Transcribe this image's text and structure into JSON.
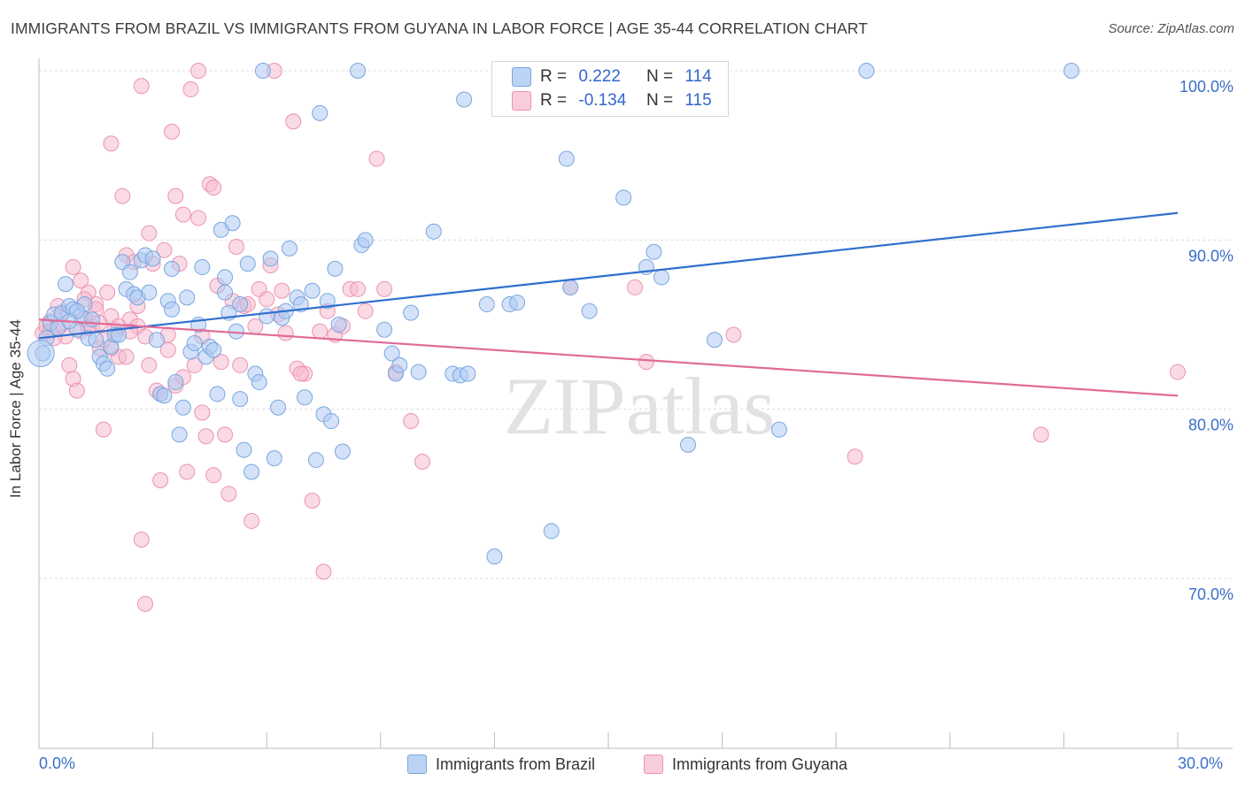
{
  "title": "IMMIGRANTS FROM BRAZIL VS IMMIGRANTS FROM GUYANA IN LABOR FORCE | AGE 35-44 CORRELATION CHART",
  "source": "Source: ZipAtlas.com",
  "watermark": "ZIPatlas",
  "legend_top": {
    "brazil": {
      "r_label": "R =",
      "r_value": "0.222",
      "n_label": "N =",
      "n_value": "114"
    },
    "guyana": {
      "r_label": "R =",
      "r_value": "-0.134",
      "n_label": "N =",
      "n_value": "115"
    }
  },
  "legend_bottom": {
    "brazil": "Immigrants from Brazil",
    "guyana": "Immigrants from Guyana"
  },
  "x_axis": {
    "min_label": "0.0%",
    "max_label": "30.0%"
  },
  "colors": {
    "brazil_fill": "#aecbf2",
    "brazil_stroke": "#7aa6e0",
    "brazil_line": "#2f6fcd",
    "guyana_fill": "#f6bcd0",
    "guyana_stroke": "#ec93b2",
    "guyana_line": "#e06b98",
    "grid": "#dcdcdc",
    "tick_label": "#3a6fc7"
  },
  "chart_data": {
    "type": "scatter",
    "title": "IMMIGRANTS FROM BRAZIL VS IMMIGRANTS FROM GUYANA IN LABOR FORCE | AGE 35-44 CORRELATION CHART",
    "xlabel": "",
    "ylabel": "In Labor Force | Age 35-44",
    "xlim": [
      0,
      30
    ],
    "ylim": [
      60,
      102
    ],
    "y_ticks": [
      {
        "value": 70,
        "label": "70.0%"
      },
      {
        "value": 80,
        "label": "80.0%"
      },
      {
        "value": 90,
        "label": "90.0%"
      },
      {
        "value": 100,
        "label": "100.0%"
      }
    ],
    "grid": "horizontal dashed",
    "legend": "top-center",
    "series": [
      {
        "name": "Immigrants from Brazil",
        "color": "#aecbf2",
        "trend": {
          "x": [
            0,
            30
          ],
          "y": [
            84.2,
            91.6
          ]
        },
        "points": [
          [
            0.1,
            83.3
          ],
          [
            0.2,
            84.2
          ],
          [
            0.3,
            85.1
          ],
          [
            0.4,
            85.6
          ],
          [
            0.5,
            84.8
          ],
          [
            0.6,
            85.7
          ],
          [
            0.7,
            87.4
          ],
          [
            0.8,
            86.1
          ],
          [
            0.9,
            85.9
          ],
          [
            1.0,
            84.7
          ],
          [
            1.1,
            85.5
          ],
          [
            1.2,
            86.2
          ],
          [
            1.3,
            84.2
          ],
          [
            1.4,
            85.3
          ],
          [
            1.5,
            84.1
          ],
          [
            1.6,
            83.1
          ],
          [
            1.7,
            82.7
          ],
          [
            1.8,
            82.4
          ],
          [
            1.9,
            83.7
          ],
          [
            2.0,
            84.4
          ],
          [
            2.2,
            88.7
          ],
          [
            2.3,
            87.1
          ],
          [
            2.4,
            88.1
          ],
          [
            2.5,
            86.8
          ],
          [
            2.6,
            86.6
          ],
          [
            2.7,
            88.8
          ],
          [
            2.8,
            89.1
          ],
          [
            2.9,
            86.9
          ],
          [
            3.0,
            88.9
          ],
          [
            3.1,
            84.1
          ],
          [
            3.2,
            80.9
          ],
          [
            3.3,
            80.8
          ],
          [
            3.4,
            86.4
          ],
          [
            3.5,
            85.9
          ],
          [
            3.6,
            81.6
          ],
          [
            3.7,
            78.5
          ],
          [
            3.8,
            80.1
          ],
          [
            3.9,
            86.6
          ],
          [
            4.0,
            83.4
          ],
          [
            4.1,
            83.9
          ],
          [
            4.2,
            85.0
          ],
          [
            4.3,
            88.4
          ],
          [
            4.4,
            83.1
          ],
          [
            4.5,
            83.7
          ],
          [
            4.6,
            83.5
          ],
          [
            4.7,
            80.9
          ],
          [
            4.8,
            90.6
          ],
          [
            4.9,
            86.9
          ],
          [
            5.0,
            85.7
          ],
          [
            5.1,
            91.0
          ],
          [
            5.2,
            84.6
          ],
          [
            5.3,
            80.6
          ],
          [
            5.4,
            77.6
          ],
          [
            5.5,
            88.6
          ],
          [
            5.6,
            76.3
          ],
          [
            5.7,
            82.1
          ],
          [
            5.8,
            81.6
          ],
          [
            5.9,
            100.0
          ],
          [
            6.1,
            88.9
          ],
          [
            6.2,
            77.1
          ],
          [
            6.3,
            80.1
          ],
          [
            6.4,
            85.4
          ],
          [
            6.5,
            85.8
          ],
          [
            6.6,
            89.5
          ],
          [
            6.8,
            86.6
          ],
          [
            6.9,
            86.2
          ],
          [
            7.0,
            80.7
          ],
          [
            7.2,
            87.0
          ],
          [
            7.3,
            77.0
          ],
          [
            7.4,
            97.5
          ],
          [
            7.5,
            79.7
          ],
          [
            7.6,
            86.4
          ],
          [
            7.7,
            79.3
          ],
          [
            7.8,
            88.3
          ],
          [
            8.0,
            77.5
          ],
          [
            8.4,
            100.0
          ],
          [
            8.5,
            89.7
          ],
          [
            8.6,
            90.0
          ],
          [
            9.3,
            83.3
          ],
          [
            9.4,
            82.1
          ],
          [
            9.5,
            82.6
          ],
          [
            9.8,
            85.7
          ],
          [
            10.0,
            82.2
          ],
          [
            10.4,
            90.5
          ],
          [
            10.9,
            82.1
          ],
          [
            11.1,
            82.0
          ],
          [
            11.2,
            98.3
          ],
          [
            11.3,
            82.1
          ],
          [
            11.8,
            86.2
          ],
          [
            12.4,
            86.2
          ],
          [
            12.6,
            86.3
          ],
          [
            12.0,
            71.3
          ],
          [
            13.5,
            72.8
          ],
          [
            13.9,
            94.8
          ],
          [
            14.0,
            87.2
          ],
          [
            14.5,
            85.8
          ],
          [
            15.4,
            92.5
          ],
          [
            16.0,
            88.4
          ],
          [
            16.2,
            89.3
          ],
          [
            16.4,
            87.8
          ],
          [
            17.1,
            77.9
          ],
          [
            17.8,
            84.1
          ],
          [
            19.5,
            78.8
          ],
          [
            21.8,
            100.0
          ],
          [
            27.2,
            100.0
          ],
          [
            4.9,
            87.8
          ],
          [
            2.1,
            84.4
          ],
          [
            3.5,
            88.3
          ],
          [
            1.0,
            85.8
          ],
          [
            6.0,
            85.5
          ],
          [
            5.3,
            86.2
          ],
          [
            7.9,
            85.0
          ],
          [
            9.1,
            84.7
          ],
          [
            0.8,
            85.2
          ]
        ]
      },
      {
        "name": "Immigrants from Guyana",
        "color": "#f6bcd0",
        "trend": {
          "x": [
            0,
            30
          ],
          "y": [
            85.3,
            80.8
          ]
        },
        "points": [
          [
            0.1,
            84.5
          ],
          [
            0.2,
            84.9
          ],
          [
            0.3,
            85.2
          ],
          [
            0.4,
            84.7
          ],
          [
            0.5,
            86.1
          ],
          [
            0.6,
            85.0
          ],
          [
            0.7,
            84.3
          ],
          [
            0.8,
            82.6
          ],
          [
            0.9,
            81.8
          ],
          [
            1.0,
            81.1
          ],
          [
            1.1,
            84.6
          ],
          [
            1.2,
            85.3
          ],
          [
            1.3,
            86.9
          ],
          [
            1.4,
            84.9
          ],
          [
            1.5,
            86.2
          ],
          [
            1.6,
            83.6
          ],
          [
            1.7,
            78.8
          ],
          [
            1.8,
            86.9
          ],
          [
            1.9,
            85.5
          ],
          [
            2.0,
            84.7
          ],
          [
            2.1,
            83.1
          ],
          [
            2.2,
            92.6
          ],
          [
            2.3,
            89.1
          ],
          [
            2.4,
            85.3
          ],
          [
            2.5,
            88.7
          ],
          [
            2.6,
            84.9
          ],
          [
            2.7,
            72.3
          ],
          [
            2.8,
            68.5
          ],
          [
            2.9,
            90.4
          ],
          [
            3.0,
            88.6
          ],
          [
            3.1,
            81.1
          ],
          [
            3.2,
            75.8
          ],
          [
            3.3,
            89.4
          ],
          [
            3.4,
            84.4
          ],
          [
            3.5,
            96.4
          ],
          [
            3.6,
            92.6
          ],
          [
            3.7,
            88.6
          ],
          [
            3.8,
            91.5
          ],
          [
            3.9,
            76.3
          ],
          [
            4.0,
            98.9
          ],
          [
            4.1,
            82.6
          ],
          [
            4.2,
            91.3
          ],
          [
            4.3,
            79.8
          ],
          [
            4.4,
            78.4
          ],
          [
            4.5,
            93.3
          ],
          [
            4.6,
            93.1
          ],
          [
            4.7,
            87.3
          ],
          [
            4.8,
            82.8
          ],
          [
            4.9,
            78.5
          ],
          [
            5.0,
            75.0
          ],
          [
            5.1,
            86.4
          ],
          [
            5.2,
            89.6
          ],
          [
            5.3,
            82.6
          ],
          [
            5.4,
            86.1
          ],
          [
            5.5,
            86.2
          ],
          [
            5.6,
            73.4
          ],
          [
            5.8,
            87.1
          ],
          [
            6.0,
            86.5
          ],
          [
            6.1,
            88.5
          ],
          [
            6.2,
            100.0
          ],
          [
            6.3,
            85.6
          ],
          [
            6.4,
            87.0
          ],
          [
            6.5,
            84.5
          ],
          [
            6.7,
            97.0
          ],
          [
            6.8,
            82.4
          ],
          [
            7.0,
            82.1
          ],
          [
            7.2,
            74.6
          ],
          [
            7.4,
            84.6
          ],
          [
            7.5,
            70.4
          ],
          [
            7.6,
            85.8
          ],
          [
            7.8,
            84.4
          ],
          [
            8.0,
            84.9
          ],
          [
            8.2,
            87.1
          ],
          [
            8.4,
            87.1
          ],
          [
            8.6,
            85.8
          ],
          [
            8.9,
            94.8
          ],
          [
            9.1,
            87.1
          ],
          [
            9.4,
            82.2
          ],
          [
            9.8,
            79.3
          ],
          [
            10.1,
            76.9
          ],
          [
            3.6,
            81.4
          ],
          [
            2.1,
            84.9
          ],
          [
            2.4,
            84.6
          ],
          [
            1.5,
            85.9
          ],
          [
            1.9,
            83.6
          ],
          [
            2.9,
            82.6
          ],
          [
            3.2,
            80.9
          ],
          [
            4.2,
            100.0
          ],
          [
            2.7,
            99.1
          ],
          [
            1.9,
            95.7
          ],
          [
            3.8,
            81.9
          ],
          [
            4.6,
            76.1
          ],
          [
            14.0,
            87.2
          ],
          [
            15.7,
            87.2
          ],
          [
            16.0,
            82.8
          ],
          [
            18.3,
            84.4
          ],
          [
            21.5,
            77.2
          ],
          [
            26.4,
            78.5
          ],
          [
            30.0,
            82.2
          ],
          [
            1.1,
            87.6
          ],
          [
            0.9,
            88.4
          ],
          [
            1.3,
            84.8
          ],
          [
            0.6,
            85.6
          ],
          [
            1.7,
            84.1
          ],
          [
            2.3,
            83.1
          ],
          [
            3.4,
            83.5
          ],
          [
            0.4,
            84.2
          ],
          [
            2.6,
            86.1
          ],
          [
            4.3,
            84.3
          ],
          [
            5.7,
            84.9
          ],
          [
            6.9,
            82.1
          ],
          [
            1.2,
            86.5
          ],
          [
            0.3,
            84.6
          ],
          [
            2.8,
            84.3
          ],
          [
            1.6,
            85.1
          ]
        ]
      }
    ]
  }
}
